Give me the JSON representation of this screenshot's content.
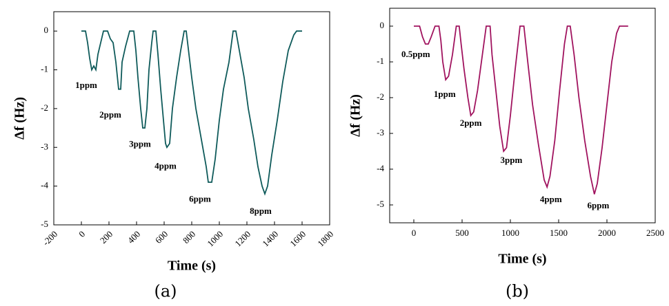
{
  "chart_data": [
    {
      "type": "line",
      "y_label": "Δf (Hz)",
      "x_label": "Time (s)",
      "caption": "(a)",
      "x": [
        0,
        30,
        45,
        60,
        75,
        90,
        105,
        120,
        140,
        160,
        190,
        210,
        230,
        250,
        270,
        285,
        295,
        320,
        350,
        380,
        395,
        410,
        430,
        445,
        460,
        475,
        490,
        510,
        520,
        540,
        555,
        575,
        595,
        610,
        620,
        640,
        660,
        690,
        720,
        745,
        760,
        780,
        800,
        830,
        860,
        880,
        905,
        920,
        945,
        970,
        1000,
        1030,
        1070,
        1100,
        1120,
        1150,
        1180,
        1210,
        1250,
        1280,
        1310,
        1330,
        1350,
        1380,
        1420,
        1460,
        1500,
        1540,
        1560,
        1580,
        1600
      ],
      "series": [
        {
          "color": "#0e5a5a",
          "values": [
            0,
            0,
            -0.3,
            -0.7,
            -1.0,
            -0.9,
            -1.0,
            -0.6,
            -0.3,
            0,
            0,
            -0.2,
            -0.3,
            -0.8,
            -1.5,
            -1.5,
            -0.8,
            -0.4,
            0,
            0,
            -0.5,
            -1.2,
            -2.0,
            -2.5,
            -2.5,
            -2.0,
            -1.0,
            -0.3,
            0,
            0,
            -0.6,
            -1.5,
            -2.3,
            -2.9,
            -3.0,
            -2.9,
            -2.0,
            -1.2,
            -0.5,
            0,
            0,
            -0.6,
            -1.2,
            -2.0,
            -2.6,
            -3.0,
            -3.5,
            -3.9,
            -3.9,
            -3.3,
            -2.3,
            -1.5,
            -0.8,
            0,
            0,
            -0.6,
            -1.2,
            -2.0,
            -2.8,
            -3.5,
            -4.0,
            -4.2,
            -4.0,
            -3.2,
            -2.3,
            -1.3,
            -0.5,
            -0.1,
            0,
            0,
            0
          ]
        }
      ],
      "xlim": [
        -200,
        1800
      ],
      "xticks": [
        -200,
        0,
        200,
        400,
        600,
        800,
        1000,
        1200,
        1400,
        1600,
        1800
      ],
      "ylim": [
        -5,
        0.5
      ],
      "yticks": [
        -5,
        -4,
        -3,
        -2,
        -1,
        0
      ],
      "annotations": [
        {
          "text": "1ppm",
          "x": 35,
          "y": -1.42
        },
        {
          "text": "2ppm",
          "x": 210,
          "y": -2.18
        },
        {
          "text": "3ppm",
          "x": 425,
          "y": -2.93
        },
        {
          "text": "4ppm",
          "x": 610,
          "y": -3.5
        },
        {
          "text": "6ppm",
          "x": 860,
          "y": -4.35
        },
        {
          "text": "8ppm",
          "x": 1300,
          "y": -4.66
        }
      ]
    },
    {
      "type": "line",
      "y_label": "Δf (Hz)",
      "x_label": "Time (s)",
      "caption": "(b)",
      "x": [
        0,
        60,
        90,
        120,
        150,
        180,
        220,
        260,
        280,
        300,
        330,
        360,
        400,
        440,
        470,
        490,
        520,
        560,
        590,
        620,
        660,
        710,
        750,
        790,
        810,
        850,
        890,
        930,
        960,
        1000,
        1050,
        1100,
        1140,
        1180,
        1230,
        1290,
        1350,
        1380,
        1410,
        1460,
        1510,
        1560,
        1590,
        1620,
        1660,
        1710,
        1770,
        1830,
        1870,
        1900,
        1950,
        2000,
        2050,
        2100,
        2130,
        2220
      ],
      "series": [
        {
          "color": "#a0125e",
          "values": [
            0,
            0,
            -0.3,
            -0.5,
            -0.5,
            -0.3,
            0,
            0,
            -0.4,
            -1.0,
            -1.5,
            -1.4,
            -0.8,
            0,
            0,
            -0.5,
            -1.2,
            -2.0,
            -2.5,
            -2.4,
            -1.8,
            -0.8,
            0,
            0,
            -0.8,
            -1.8,
            -2.8,
            -3.5,
            -3.4,
            -2.5,
            -1.2,
            0,
            0,
            -1.0,
            -2.2,
            -3.3,
            -4.3,
            -4.5,
            -4.2,
            -3.2,
            -1.8,
            -0.5,
            0,
            0,
            -0.8,
            -2.0,
            -3.2,
            -4.2,
            -4.7,
            -4.4,
            -3.4,
            -2.2,
            -1.0,
            -0.2,
            0,
            0
          ]
        }
      ],
      "xlim": [
        -250,
        2500
      ],
      "xticks": [
        0,
        500,
        1000,
        1500,
        2000,
        2500
      ],
      "ylim": [
        -5.5,
        0.5
      ],
      "yticks": [
        -5,
        -4,
        -3,
        -2,
        -1,
        0
      ],
      "annotations": [
        {
          "text": "0.5ppm",
          "x": 20,
          "y": -0.81
        },
        {
          "text": "1ppm",
          "x": 320,
          "y": -1.92
        },
        {
          "text": "2ppm",
          "x": 590,
          "y": -2.73
        },
        {
          "text": "3ppm",
          "x": 1010,
          "y": -3.77
        },
        {
          "text": "4ppm",
          "x": 1420,
          "y": -4.87
        },
        {
          "text": "6ppm",
          "x": 1910,
          "y": -5.04
        }
      ]
    }
  ]
}
